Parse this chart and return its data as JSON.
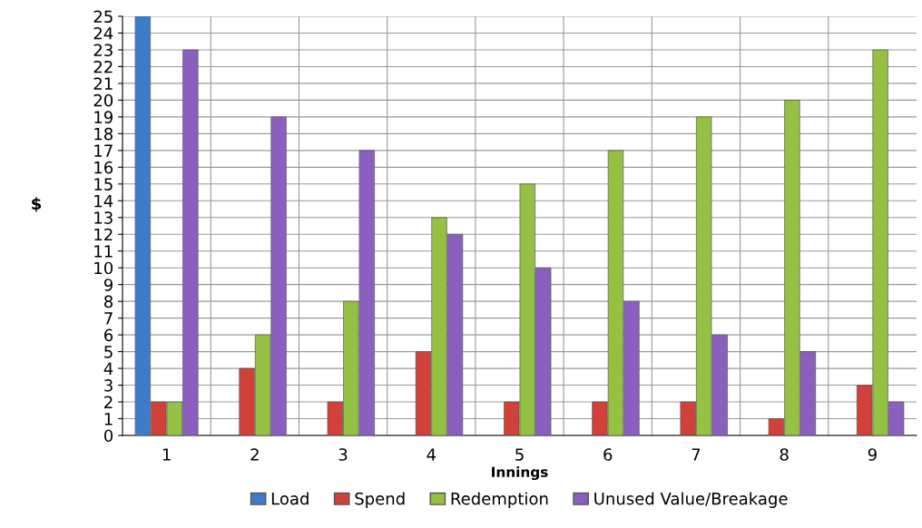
{
  "chart_data": {
    "type": "bar",
    "xlabel": "Innings",
    "ylabel": "$",
    "categories": [
      "1",
      "2",
      "3",
      "4",
      "5",
      "6",
      "7",
      "8",
      "9"
    ],
    "series": [
      {
        "name": "Load",
        "color": "#3d7cc9",
        "values": [
          25,
          null,
          null,
          null,
          null,
          null,
          null,
          null,
          null
        ]
      },
      {
        "name": "Spend",
        "color": "#d0413a",
        "values": [
          2,
          4,
          2,
          5,
          2,
          2,
          2,
          1,
          3
        ]
      },
      {
        "name": "Redemption",
        "color": "#94c143",
        "values": [
          2,
          6,
          8,
          13,
          15,
          17,
          19,
          20,
          23
        ]
      },
      {
        "name": "Unused Value/Breakage",
        "color": "#8b5fc0",
        "values": [
          23,
          19,
          17,
          12,
          10,
          8,
          6,
          5,
          2
        ]
      }
    ],
    "ylim": [
      0,
      25
    ],
    "yticks": [
      0,
      1,
      2,
      3,
      4,
      5,
      6,
      7,
      8,
      9,
      10,
      11,
      12,
      13,
      14,
      15,
      16,
      17,
      18,
      19,
      20,
      21,
      22,
      23,
      24,
      25
    ],
    "grid": true,
    "legend": "bottom"
  }
}
